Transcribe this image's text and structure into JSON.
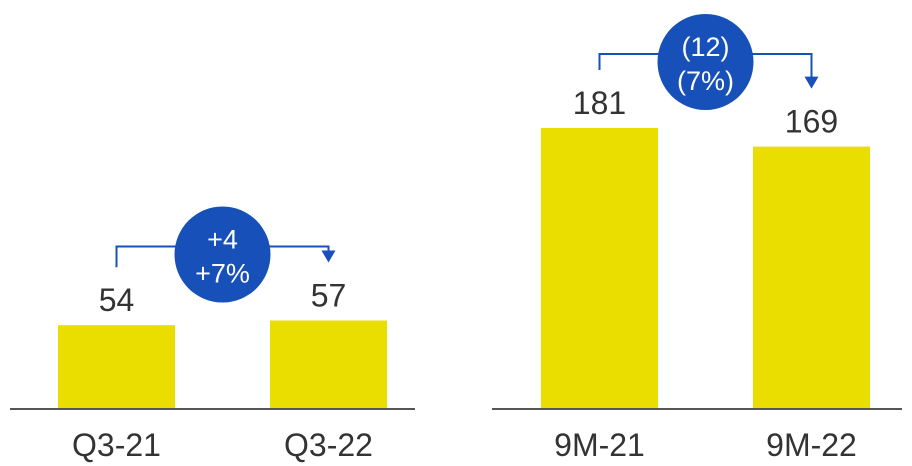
{
  "chart_data": [
    {
      "type": "bar",
      "categories": [
        "Q3-21",
        "Q3-22"
      ],
      "values": [
        54,
        57
      ],
      "ylim": [
        0,
        200
      ],
      "grid": false,
      "legend": "none",
      "change": {
        "absolute": "+4",
        "percent": "+7%"
      }
    },
    {
      "type": "bar",
      "categories": [
        "9M-21",
        "9M-22"
      ],
      "values": [
        181,
        169
      ],
      "ylim": [
        0,
        200
      ],
      "grid": false,
      "legend": "none",
      "change": {
        "absolute": "(12)",
        "percent": "(7%)"
      }
    }
  ],
  "colors": {
    "bar": "#EADD00",
    "badge": "#1650B8",
    "connector": "#1650B8",
    "axis": "#555555",
    "text": "#333333"
  }
}
